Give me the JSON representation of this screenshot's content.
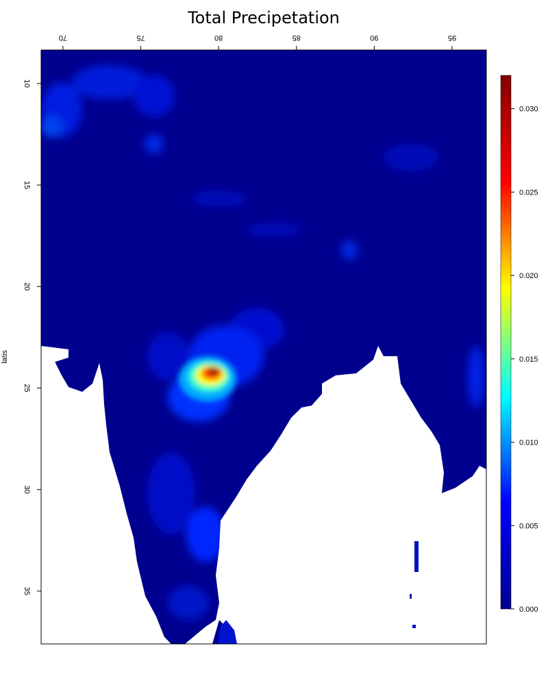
{
  "chart_data": {
    "type": "heatmap",
    "title": "Total Precipetation",
    "xlabel": "",
    "ylabel": "latis",
    "x_ticks": [
      {
        "value": 70,
        "label": "70"
      },
      {
        "value": 75,
        "label": "75"
      },
      {
        "value": 80,
        "label": "80"
      },
      {
        "value": 85,
        "label": "85"
      },
      {
        "value": 90,
        "label": "90"
      },
      {
        "value": 95,
        "label": "95"
      }
    ],
    "y_ticks": [
      {
        "value": 10,
        "label": "10"
      },
      {
        "value": 15,
        "label": "15"
      },
      {
        "value": 20,
        "label": "20"
      },
      {
        "value": 25,
        "label": "25"
      },
      {
        "value": 30,
        "label": "30"
      },
      {
        "value": 35,
        "label": "35"
      }
    ],
    "xlim": [
      68.6,
      97.2
    ],
    "ylim": [
      8.35,
      37.6
    ],
    "tick_labels_mirrored": true,
    "colorbar": {
      "min": 0.0,
      "max": 0.032,
      "ticks": [
        {
          "value": 0.0,
          "label": "0.000"
        },
        {
          "value": 0.005,
          "label": "0.005"
        },
        {
          "value": 0.01,
          "label": "0.010"
        },
        {
          "value": 0.015,
          "label": "0.015"
        },
        {
          "value": 0.02,
          "label": "0.020"
        },
        {
          "value": 0.025,
          "label": "0.025"
        },
        {
          "value": 0.03,
          "label": "0.030"
        }
      ],
      "colors": [
        "#00008F",
        "#0000FF",
        "#00FFFF",
        "#FFFF00",
        "#FF0000",
        "#800000"
      ]
    },
    "no_data_color": "#ffffff",
    "peak": {
      "lon": 80.0,
      "lat": 24.2,
      "value": 0.032
    }
  }
}
